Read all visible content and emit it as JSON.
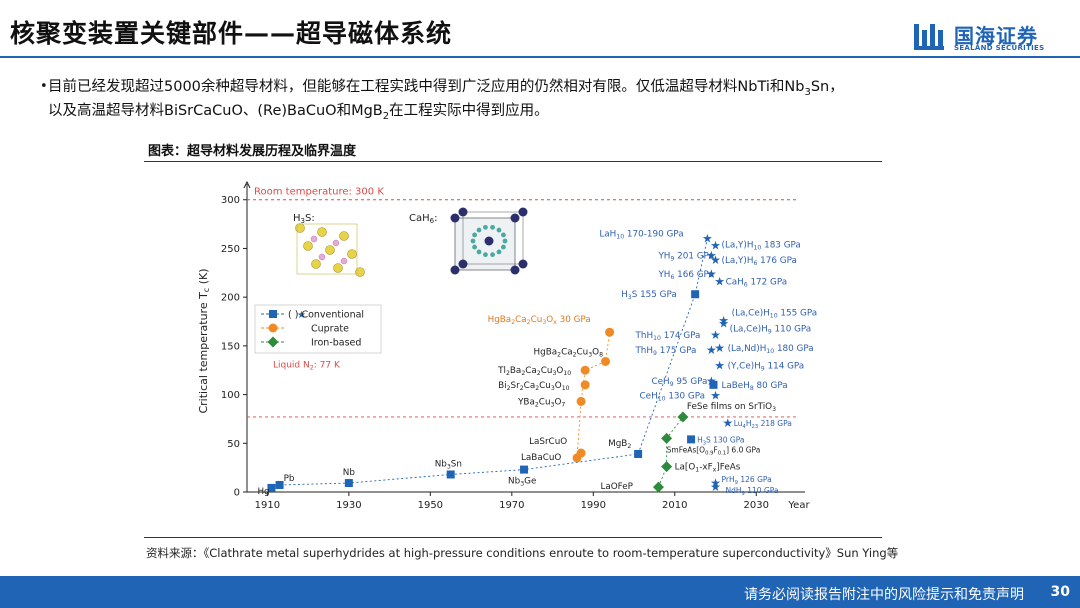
{
  "header": {
    "title": "核聚变装置关键部件——超导磁体系统",
    "brand_cn": "国海证券",
    "brand_en": "SEALAND SECURITIES"
  },
  "bullet": {
    "line1_a": "目前已经发现超过5000余种超导材料，但能够在工程实践中得到广泛应用的仍然相对有限。仅低温超导材料NbTi和Nb",
    "line1_sub": "3",
    "line1_b": "Sn，",
    "line2_a": "以及高温超导材料BiSrCaCuO、(Re)BaCuO和MgB",
    "line2_sub": "2",
    "line2_b": "在工程实际中得到应用。"
  },
  "figure": {
    "caption": "图表：超导材料发展历程及临界温度",
    "source": "资料来源：《Clathrate metal superhydrides at high-pressure conditions enroute to room-temperature superconductivity》Sun Ying等"
  },
  "footer": {
    "disclaimer": "请务必阅读报告附注中的风险提示和免责声明",
    "page": "30"
  },
  "colors": {
    "brand": "#1f64b5",
    "conventional": "#1f64b5",
    "cuprate": "#f08a24",
    "iron": "#2e8a3c",
    "room_line": "#d94a4a",
    "hydride_label": "#2f5fb0",
    "cuprate_label": "#e0781c"
  },
  "chart_data": {
    "type": "scatter",
    "xlabel": "Year",
    "ylabel": "Critical temperature T",
    "ylabel_sub": "c",
    "ylabel_unit": " (K)",
    "xlim": [
      1905,
      2040
    ],
    "ylim": [
      0,
      310
    ],
    "xticks": [
      "1910",
      "1930",
      "1950",
      "1970",
      "1990",
      "2010",
      "2030"
    ],
    "yticks": [
      "0",
      "50",
      "100",
      "150",
      "200",
      "250",
      "300"
    ],
    "room_temperature": {
      "value": 300,
      "label": "Room temperature: 300 K"
    },
    "liquid_n2": {
      "value": 77,
      "label": "Liquid N",
      "label_sub": "2",
      "label_tail": ": 77 K"
    },
    "legend": {
      "conventional": "(    ) Conventional",
      "cuprate": "Cuprate",
      "iron": "Iron-based"
    },
    "insets": {
      "h3s": "H",
      "h3s_sub": "3",
      "h3s_tail": "S:",
      "cah6": "CaH",
      "cah6_sub": "6",
      "cah6_tail": ":"
    },
    "series": [
      {
        "name": "Conventional",
        "marker": "square",
        "points": [
          {
            "x": 1911,
            "y": 4.2,
            "label": "Hg"
          },
          {
            "x": 1913,
            "y": 7.2,
            "label": "Pb"
          },
          {
            "x": 1930,
            "y": 9.2,
            "label": "Nb"
          },
          {
            "x": 1955,
            "y": 18,
            "label": "Nb3Sn"
          },
          {
            "x": 1973,
            "y": 23,
            "label": "Nb3Ge"
          },
          {
            "x": 2001,
            "y": 39,
            "label": "MgB2"
          },
          {
            "x": 2015,
            "y": 203,
            "label": "H3S 155 GPa"
          },
          {
            "x": 2019.5,
            "y": 110,
            "label": "LaBeH8 80 GPa"
          },
          {
            "x": 2014,
            "y": 54,
            "label": "H3S 130 GPa"
          }
        ]
      },
      {
        "name": "Cuprate",
        "marker": "circle",
        "points": [
          {
            "x": 1986,
            "y": 35,
            "label": "LaBaCuO"
          },
          {
            "x": 1987,
            "y": 40,
            "label": "LaSrCuO"
          },
          {
            "x": 1987,
            "y": 93,
            "label": "YBa2Cu3O7"
          },
          {
            "x": 1988,
            "y": 110,
            "label": "Bi2Sr2Ca2Cu3O10"
          },
          {
            "x": 1988,
            "y": 125,
            "label": "Tl2Ba2Ca2Cu3O10"
          },
          {
            "x": 1993,
            "y": 134,
            "label": "HgBa2Ca2Cu3O8"
          },
          {
            "x": 1994,
            "y": 164,
            "label": "HgBa2Ca2Cu3Ox 30 GPa"
          }
        ]
      },
      {
        "name": "Iron-based",
        "marker": "diamond",
        "points": [
          {
            "x": 2006,
            "y": 5,
            "label": "LaOFeP"
          },
          {
            "x": 2008,
            "y": 26,
            "label": "La[O1-xFx]FeAs"
          },
          {
            "x": 2008,
            "y": 55,
            "label": "SmFeAs[O0.9F0.1] 6.0 GPa"
          },
          {
            "x": 2012,
            "y": 77,
            "label": "FeSe films on SrTiO3"
          }
        ]
      },
      {
        "name": "Hydrides",
        "marker": "star",
        "points": [
          {
            "x": 2018,
            "y": 260,
            "label": "LaH10 170-190 GPa"
          },
          {
            "x": 2020,
            "y": 253,
            "label": "(La,Y)H10 183 GPa"
          },
          {
            "x": 2019,
            "y": 243,
            "label": "YH9 201 GPa"
          },
          {
            "x": 2020,
            "y": 238,
            "label": "(La,Y)H6 176 GPa"
          },
          {
            "x": 2019,
            "y": 224,
            "label": "YH6 166 GPa"
          },
          {
            "x": 2021,
            "y": 216,
            "label": "CaH6 172 GPa"
          },
          {
            "x": 2022,
            "y": 176,
            "label": "(La,Ce)H10 155 GPa"
          },
          {
            "x": 2022,
            "y": 173,
            "label": "(La,Ce)H9 110 GPa"
          },
          {
            "x": 2020,
            "y": 161,
            "label": "ThH10 174 GPa"
          },
          {
            "x": 2019,
            "y": 146,
            "label": "ThH9 175 GPa"
          },
          {
            "x": 2021,
            "y": 148,
            "label": "(La,Nd)H10 180 GPa"
          },
          {
            "x": 2021,
            "y": 130,
            "label": "(Y,Ce)H9 114 GPa"
          },
          {
            "x": 2019,
            "y": 114,
            "label": "CeH9 95 GPa"
          },
          {
            "x": 2020,
            "y": 99,
            "label": "CeH10 130 GPa"
          },
          {
            "x": 2023,
            "y": 71,
            "label": "Lu4H23 218 GPa"
          },
          {
            "x": 2020,
            "y": 9,
            "label": "PrH9 126 GPa"
          },
          {
            "x": 2020,
            "y": 5,
            "label": "NdH9 110 GPa"
          }
        ]
      }
    ]
  }
}
